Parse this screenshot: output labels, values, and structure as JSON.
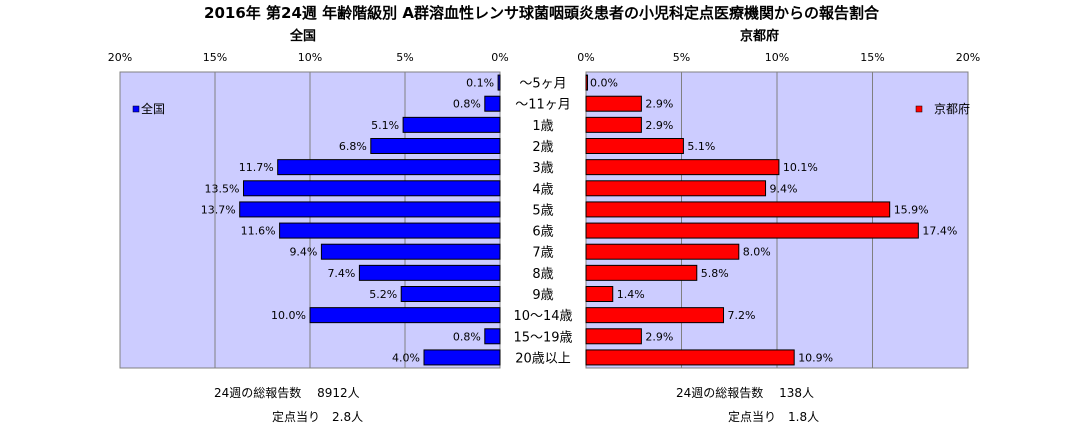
{
  "title": "2016年 第24週 年齢階級別 A群溶血性レンサ球菌咽頭炎患者の小児科定点医療機関からの報告割合",
  "chart_data": {
    "type": "bar",
    "orientation": "horizontal",
    "categories": [
      "〜5ヶ月",
      "〜11ヶ月",
      "1歳",
      "2歳",
      "3歳",
      "4歳",
      "5歳",
      "6歳",
      "7歳",
      "8歳",
      "9歳",
      "10〜14歳",
      "15〜19歳",
      "20歳以上"
    ],
    "panels": [
      {
        "title": "全国",
        "legend": "全国",
        "legend_position": "top-left",
        "color": "#0000ff",
        "direction": "reversed",
        "xlim": [
          0,
          20
        ],
        "ticks": [
          "0%",
          "5%",
          "10%",
          "15%",
          "20%"
        ],
        "values": [
          0.1,
          0.8,
          5.1,
          6.8,
          11.7,
          13.5,
          13.7,
          11.6,
          9.4,
          7.4,
          5.2,
          10.0,
          0.8,
          4.0
        ],
        "labels": [
          "0.1%",
          "0.8%",
          "5.1%",
          "6.8%",
          "11.7%",
          "13.5%",
          "13.7%",
          "11.6%",
          "9.4%",
          "7.4%",
          "5.2%",
          "10.0%",
          "0.8%",
          "4.0%"
        ]
      },
      {
        "title": "京都府",
        "legend": "京都府",
        "legend_position": "top-right",
        "color": "#ff0000",
        "direction": "normal",
        "xlim": [
          0,
          20
        ],
        "ticks": [
          "0%",
          "5%",
          "10%",
          "15%",
          "20%"
        ],
        "values": [
          0.0,
          2.9,
          2.9,
          5.1,
          10.1,
          9.4,
          15.9,
          17.4,
          8.0,
          5.8,
          1.4,
          7.2,
          2.9,
          10.9
        ],
        "labels": [
          "0.0%",
          "2.9%",
          "2.9%",
          "5.1%",
          "10.1%",
          "9.4%",
          "15.9%",
          "17.4%",
          "8.0%",
          "5.8%",
          "1.4%",
          "7.2%",
          "2.9%",
          "10.9%"
        ]
      }
    ],
    "grid": true,
    "plot_background": "#ccccff"
  },
  "footer": {
    "national_total": "24週の総報告数　 8912人",
    "national_per_site": "定点当り　2.8人",
    "kyoto_total": "24週の総報告数　 138人",
    "kyoto_per_site": "定点当り　1.8人"
  }
}
